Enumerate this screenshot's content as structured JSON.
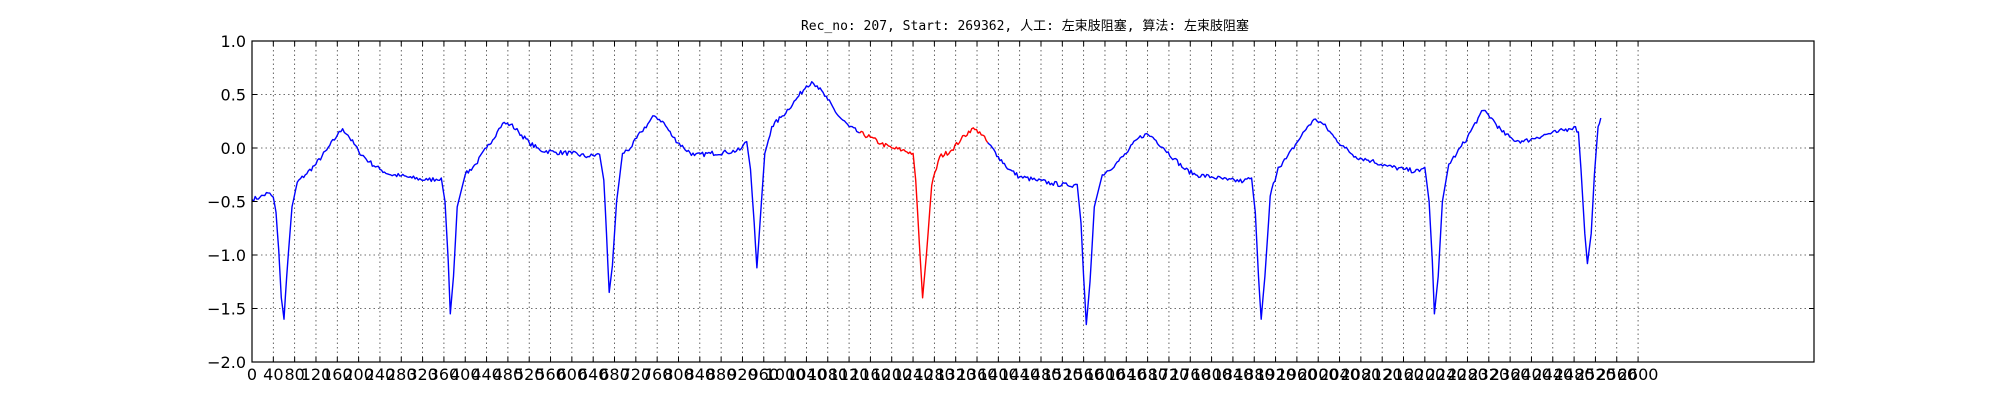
{
  "chart_data": {
    "type": "line",
    "title": "Rec_no: 207, Start: 269362, 人工: 左束肢阻塞, 算法: 左束肢阻塞",
    "xlabel": "",
    "ylabel": "",
    "xlim": [
      0,
      2930
    ],
    "ylim": [
      -2.0,
      1.0
    ],
    "grid": true,
    "yticks": [
      1.0,
      0.5,
      0.0,
      -0.5,
      -1.0,
      -1.5,
      -2.0
    ],
    "ytick_labels": [
      "1.0",
      "0.5",
      "0.0",
      "−0.5",
      "−1.0",
      "−1.5",
      "−2.0"
    ],
    "xticks": [
      0,
      40,
      80,
      120,
      160,
      200,
      240,
      280,
      320,
      360,
      400,
      440,
      480,
      520,
      560,
      600,
      640,
      680,
      720,
      760,
      800,
      840,
      880,
      920,
      960,
      1000,
      1040,
      1080,
      1120,
      1160,
      1200,
      1240,
      1280,
      1320,
      1360,
      1400,
      1440,
      1480,
      1520,
      1560,
      1600,
      1640,
      1680,
      1720,
      1760,
      1800,
      1840,
      1880,
      1920,
      1960,
      2000,
      2040,
      2080,
      2120,
      2160,
      2200,
      2240,
      2280,
      2320,
      2360,
      2400,
      2440,
      2480,
      2520,
      2560,
      2600
    ],
    "series": [
      {
        "color": "#0000ff",
        "points": [
          [
            0,
            -0.48
          ],
          [
            15,
            -0.46
          ],
          [
            30,
            -0.42
          ],
          [
            40,
            -0.46
          ],
          [
            45,
            -0.6
          ],
          [
            50,
            -0.95
          ],
          [
            55,
            -1.4
          ],
          [
            60,
            -1.6
          ],
          [
            65,
            -1.2
          ],
          [
            75,
            -0.55
          ],
          [
            85,
            -0.32
          ],
          [
            100,
            -0.25
          ],
          [
            120,
            -0.15
          ],
          [
            140,
            -0.02
          ],
          [
            160,
            0.12
          ],
          [
            170,
            0.18
          ],
          [
            180,
            0.12
          ],
          [
            200,
            -0.03
          ],
          [
            220,
            -0.13
          ],
          [
            240,
            -0.2
          ],
          [
            260,
            -0.25
          ],
          [
            280,
            -0.26
          ],
          [
            300,
            -0.28
          ],
          [
            330,
            -0.3
          ],
          [
            355,
            -0.28
          ],
          [
            362,
            -0.5
          ],
          [
            368,
            -1.05
          ],
          [
            372,
            -1.55
          ],
          [
            378,
            -1.2
          ],
          [
            385,
            -0.55
          ],
          [
            400,
            -0.25
          ],
          [
            420,
            -0.15
          ],
          [
            440,
            0.0
          ],
          [
            460,
            0.15
          ],
          [
            470,
            0.23
          ],
          [
            485,
            0.22
          ],
          [
            500,
            0.15
          ],
          [
            520,
            0.05
          ],
          [
            540,
            -0.02
          ],
          [
            570,
            -0.04
          ],
          [
            600,
            -0.05
          ],
          [
            630,
            -0.08
          ],
          [
            652,
            -0.06
          ],
          [
            660,
            -0.3
          ],
          [
            665,
            -0.8
          ],
          [
            670,
            -1.35
          ],
          [
            676,
            -1.1
          ],
          [
            684,
            -0.5
          ],
          [
            695,
            -0.05
          ],
          [
            710,
            0.0
          ],
          [
            730,
            0.15
          ],
          [
            755,
            0.3
          ],
          [
            770,
            0.25
          ],
          [
            790,
            0.1
          ],
          [
            810,
            0.0
          ],
          [
            830,
            -0.07
          ],
          [
            860,
            -0.05
          ],
          [
            890,
            -0.04
          ],
          [
            915,
            -0.02
          ],
          [
            928,
            0.06
          ],
          [
            935,
            -0.2
          ],
          [
            942,
            -0.7
          ],
          [
            947,
            -1.12
          ],
          [
            953,
            -0.7
          ],
          [
            962,
            -0.05
          ],
          [
            975,
            0.2
          ],
          [
            995,
            0.3
          ],
          [
            1020,
            0.45
          ],
          [
            1040,
            0.58
          ],
          [
            1050,
            0.62
          ],
          [
            1060,
            0.58
          ],
          [
            1080,
            0.45
          ],
          [
            1100,
            0.3
          ],
          [
            1120,
            0.2
          ],
          [
            1140,
            0.14
          ]
        ]
      },
      {
        "color": "#ff0000",
        "points": [
          [
            1140,
            0.14
          ],
          [
            1160,
            0.1
          ],
          [
            1180,
            0.04
          ],
          [
            1200,
            0.0
          ],
          [
            1220,
            -0.02
          ],
          [
            1240,
            -0.05
          ],
          [
            1245,
            -0.3
          ],
          [
            1252,
            -0.9
          ],
          [
            1258,
            -1.4
          ],
          [
            1265,
            -1.0
          ],
          [
            1275,
            -0.35
          ],
          [
            1290,
            -0.08
          ],
          [
            1310,
            -0.03
          ],
          [
            1330,
            0.08
          ],
          [
            1350,
            0.18
          ],
          [
            1365,
            0.15
          ],
          [
            1380,
            0.05
          ]
        ]
      },
      {
        "color": "#0000ff",
        "points": [
          [
            1380,
            0.05
          ],
          [
            1400,
            -0.08
          ],
          [
            1420,
            -0.2
          ],
          [
            1440,
            -0.27
          ],
          [
            1470,
            -0.3
          ],
          [
            1500,
            -0.33
          ],
          [
            1530,
            -0.35
          ],
          [
            1548,
            -0.34
          ],
          [
            1555,
            -0.7
          ],
          [
            1560,
            -1.2
          ],
          [
            1565,
            -1.65
          ],
          [
            1572,
            -1.25
          ],
          [
            1580,
            -0.55
          ],
          [
            1595,
            -0.25
          ],
          [
            1620,
            -0.15
          ],
          [
            1640,
            -0.05
          ],
          [
            1660,
            0.08
          ],
          [
            1675,
            0.13
          ],
          [
            1690,
            0.1
          ],
          [
            1710,
            0.0
          ],
          [
            1730,
            -0.1
          ],
          [
            1750,
            -0.2
          ],
          [
            1770,
            -0.25
          ],
          [
            1800,
            -0.27
          ],
          [
            1830,
            -0.3
          ],
          [
            1860,
            -0.31
          ],
          [
            1875,
            -0.28
          ],
          [
            1882,
            -0.6
          ],
          [
            1888,
            -1.2
          ],
          [
            1893,
            -1.6
          ],
          [
            1900,
            -1.2
          ],
          [
            1910,
            -0.45
          ],
          [
            1925,
            -0.18
          ],
          [
            1940,
            -0.1
          ],
          [
            1960,
            0.05
          ],
          [
            1980,
            0.2
          ],
          [
            1995,
            0.27
          ],
          [
            2010,
            0.22
          ],
          [
            2030,
            0.1
          ],
          [
            2050,
            0.0
          ],
          [
            2070,
            -0.08
          ],
          [
            2100,
            -0.12
          ],
          [
            2130,
            -0.17
          ],
          [
            2160,
            -0.2
          ],
          [
            2190,
            -0.22
          ],
          [
            2200,
            -0.18
          ],
          [
            2208,
            -0.5
          ],
          [
            2214,
            -1.05
          ],
          [
            2218,
            -1.55
          ],
          [
            2225,
            -1.2
          ],
          [
            2233,
            -0.5
          ],
          [
            2245,
            -0.15
          ],
          [
            2260,
            -0.05
          ],
          [
            2280,
            0.1
          ],
          [
            2300,
            0.28
          ],
          [
            2310,
            0.35
          ],
          [
            2325,
            0.28
          ],
          [
            2345,
            0.15
          ],
          [
            2365,
            0.08
          ],
          [
            2385,
            0.06
          ],
          [
            2410,
            0.1
          ],
          [
            2430,
            0.13
          ],
          [
            2450,
            0.15
          ],
          [
            2470,
            0.18
          ],
          [
            2480,
            0.2
          ],
          [
            2488,
            0.15
          ],
          [
            2493,
            -0.2
          ],
          [
            2500,
            -0.8
          ],
          [
            2505,
            -1.08
          ],
          [
            2512,
            -0.8
          ],
          [
            2518,
            -0.25
          ],
          [
            2525,
            0.2
          ],
          [
            2530,
            0.28
          ]
        ]
      }
    ]
  }
}
